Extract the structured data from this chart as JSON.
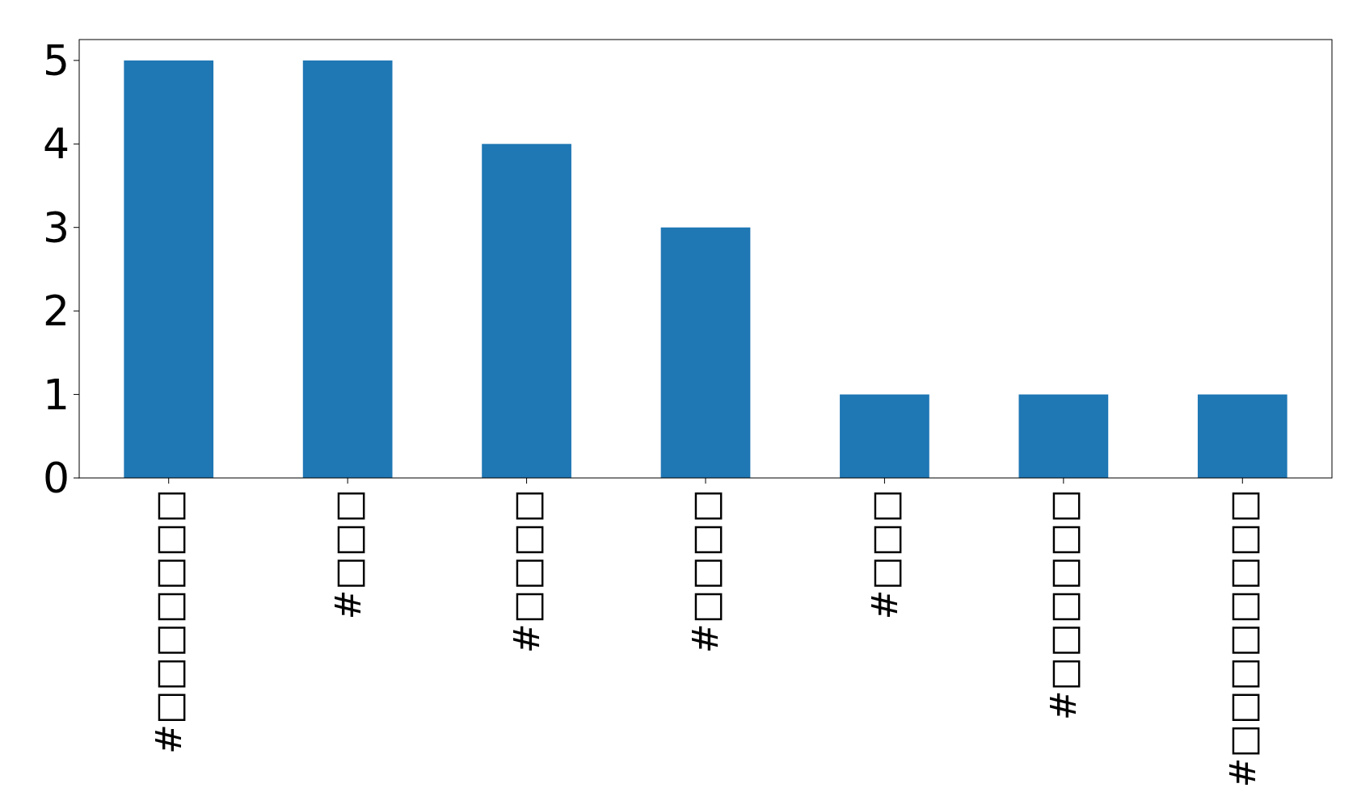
{
  "chart_data": {
    "type": "bar",
    "categories": [
      "#□□□□□□□",
      "#□□□",
      "#□□□□",
      "#□□□□",
      "#□□□",
      "#□□□□□□",
      "#□□□□□□□□"
    ],
    "values": [
      5,
      5,
      4,
      3,
      1,
      1,
      1
    ],
    "color": "#1f77b4",
    "ylim": [
      0,
      5.25
    ],
    "yticks": [
      0,
      1,
      2,
      3,
      4,
      5
    ],
    "grid": false
  }
}
